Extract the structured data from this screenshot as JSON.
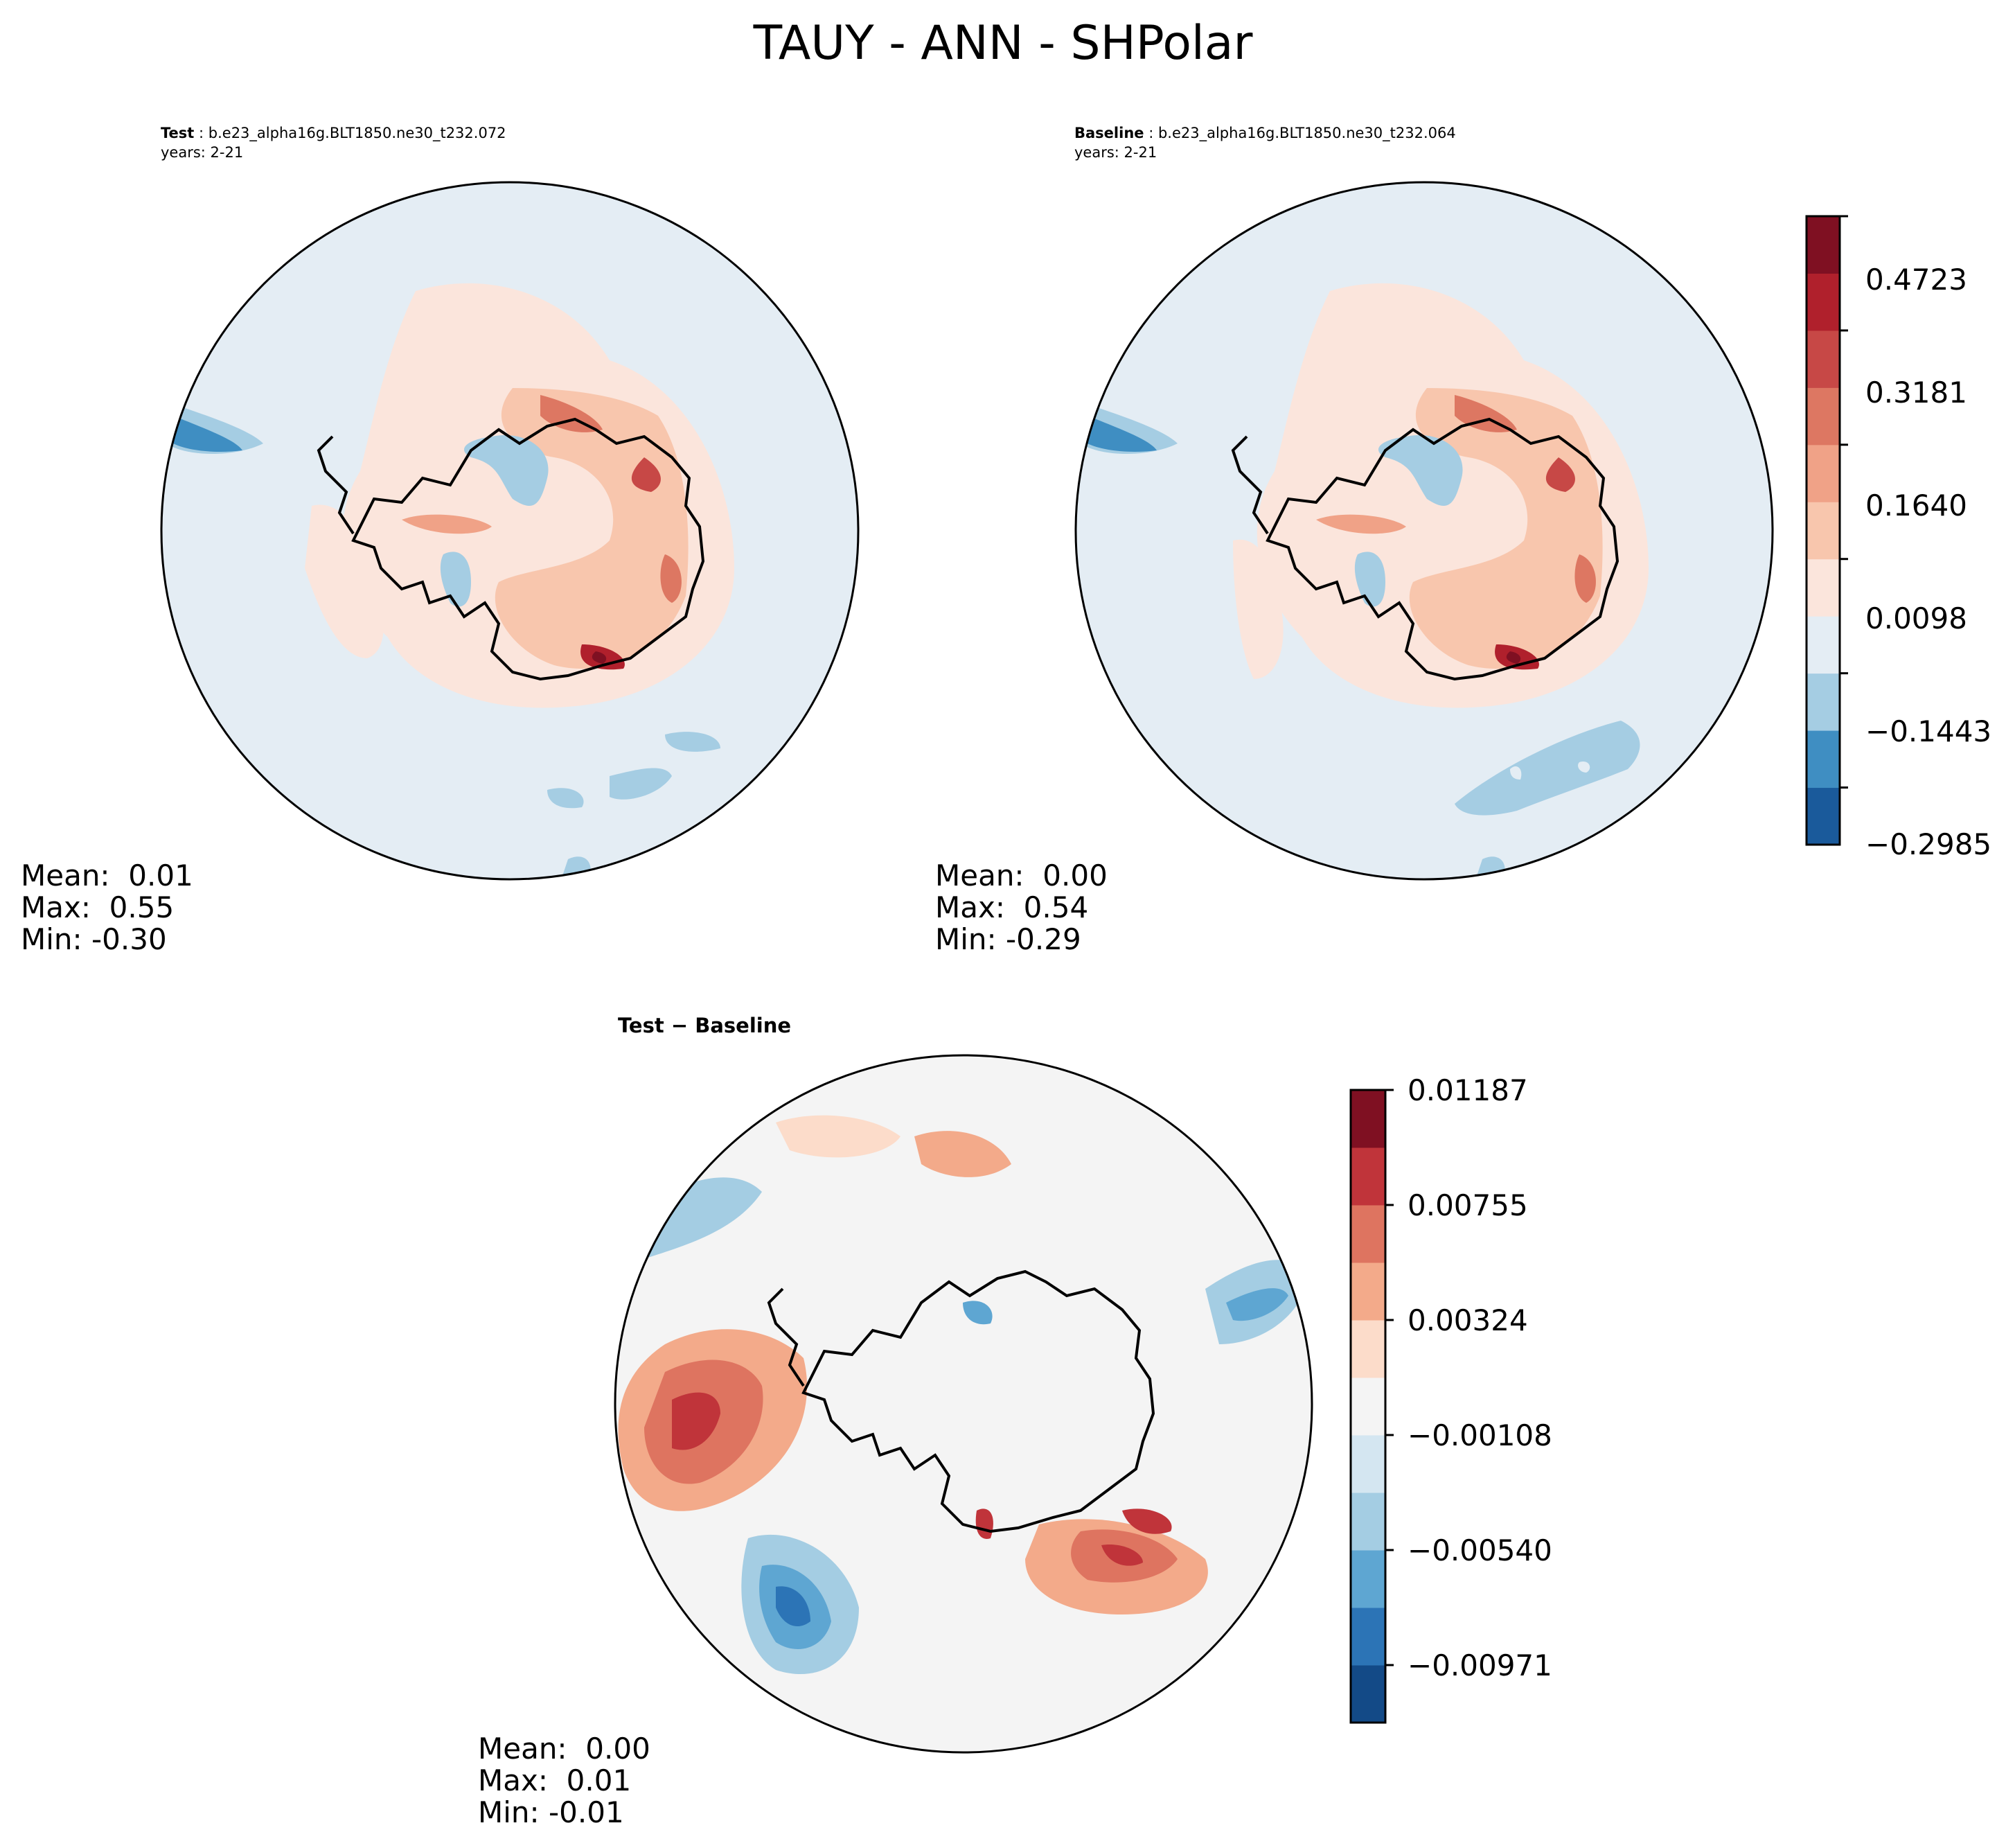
{
  "title": "TAUY - ANN - SHPolar",
  "panels": {
    "test": {
      "label": "Test",
      "case": "b.e23_alpha16g.BLT1850.ne30_t232.072",
      "years": "years: 2-21",
      "stats": {
        "mean": "Mean:  0.01",
        "max": "Max:  0.55",
        "min": "Min: -0.30"
      }
    },
    "baseline": {
      "label": "Baseline",
      "case": "b.e23_alpha16g.BLT1850.ne30_t232.064",
      "years": "years: 2-21",
      "stats": {
        "mean": "Mean:  0.00",
        "max": "Max:  0.54",
        "min": "Min: -0.29"
      }
    },
    "diff": {
      "label": "Test − Baseline",
      "stats": {
        "mean": "Mean:  0.00",
        "max": "Max:  0.01",
        "min": "Min: -0.01"
      }
    }
  },
  "chart_data": [
    {
      "type": "heatmap",
      "projection": "south-polar-stereographic",
      "title": "Test",
      "colorbar": {
        "levels": [
          -0.2985,
          -0.1443,
          0.0098,
          0.164,
          0.3181,
          0.4723
        ],
        "tick_labels": [
          "−0.2985",
          "−0.1443",
          "0.0098",
          "0.1640",
          "0.3181",
          "0.4723"
        ],
        "colors": [
          "#1a5a9b",
          "#3f8ec2",
          "#a5cde3",
          "#e4edf4",
          "#fbe5dc",
          "#f8c6ad",
          "#f0a287",
          "#dd7762",
          "#c74846",
          "#b0202c",
          "#7f1022"
        ]
      },
      "stats": {
        "mean": 0.01,
        "max": 0.55,
        "min": -0.3
      }
    },
    {
      "type": "heatmap",
      "projection": "south-polar-stereographic",
      "title": "Baseline",
      "stats": {
        "mean": 0.0,
        "max": 0.54,
        "min": -0.29
      }
    },
    {
      "type": "heatmap",
      "projection": "south-polar-stereographic",
      "title": "Test − Baseline",
      "colorbar": {
        "levels": [
          -0.00971,
          -0.0054,
          -0.00108,
          0.00324,
          0.00755,
          0.01187
        ],
        "tick_labels": [
          "−0.00971",
          "−0.00540",
          "−0.00108",
          "0.00324",
          "0.00755",
          "0.01187"
        ],
        "colors": [
          "#134a87",
          "#2c74b6",
          "#5ea6d2",
          "#a4cde3",
          "#d4e6f1",
          "#f4f4f4",
          "#fcdcca",
          "#f3aa8a",
          "#de7460",
          "#c0343a",
          "#7f1022"
        ]
      },
      "stats": {
        "mean": 0.0,
        "max": 0.01,
        "min": -0.01
      }
    }
  ]
}
